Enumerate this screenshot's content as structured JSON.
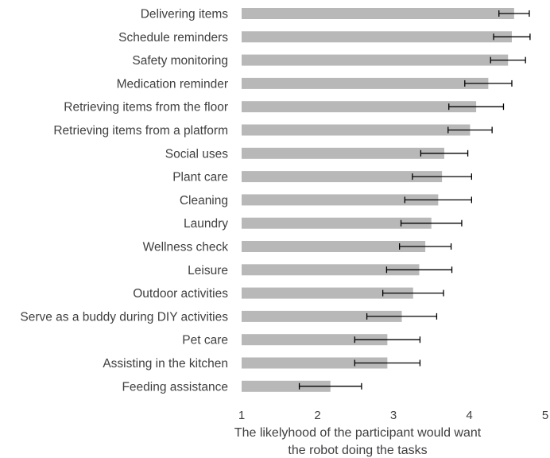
{
  "chart_data": {
    "type": "bar",
    "orientation": "horizontal",
    "categories": [
      "Delivering items",
      "Schedule reminders",
      "Safety monitoring",
      "Medication reminder",
      "Retrieving items from the floor",
      "Retrieving items from a platform",
      "Social uses",
      "Plant care",
      "Cleaning",
      "Laundry",
      "Wellness check",
      "Leisure",
      "Outdoor activities",
      "Serve as a buddy during DIY activities",
      "Pet care",
      "Assisting in the kitchen",
      "Feeding assistance"
    ],
    "values": [
      4.59,
      4.56,
      4.51,
      4.25,
      4.09,
      4.01,
      3.67,
      3.64,
      3.59,
      3.5,
      3.42,
      3.34,
      3.26,
      3.11,
      2.92,
      2.92,
      2.17
    ],
    "errors": [
      0.2,
      0.24,
      0.23,
      0.31,
      0.36,
      0.29,
      0.31,
      0.39,
      0.44,
      0.4,
      0.34,
      0.43,
      0.4,
      0.46,
      0.43,
      0.43,
      0.41
    ],
    "xlim": [
      1,
      5
    ],
    "xticks": [
      "1",
      "2",
      "3",
      "4",
      "5"
    ],
    "xlabel_lines": [
      "The likelyhood of the participant would want",
      "the robot doing the tasks"
    ],
    "ylabel": "",
    "title": "",
    "bar_color": "#b8b8b8",
    "error_color": "#000000",
    "grid": false,
    "legend": "none"
  }
}
